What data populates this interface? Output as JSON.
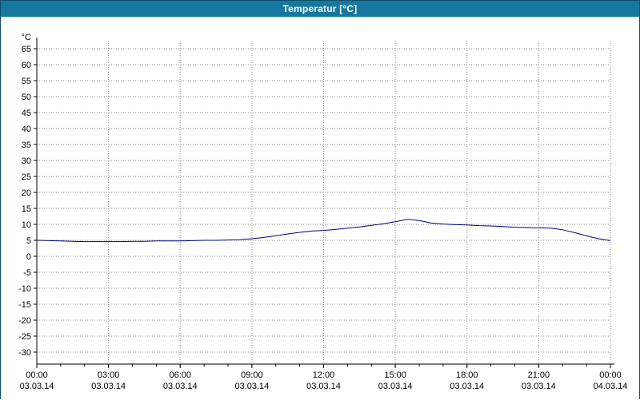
{
  "title": "Temperatur [°C]",
  "colors": {
    "titlebar_bg": "#16789f",
    "titlebar_text": "#ffffff",
    "window_border": "#0f4c6b",
    "grid": "#8a8a8a",
    "axis": "#000000",
    "series_line": "#000080",
    "plot_bg": "#ffffff"
  },
  "chart_data": {
    "type": "line",
    "title": "Temperatur [°C]",
    "xlabel": "",
    "ylabel": "°C",
    "ylim": [
      -30,
      65
    ],
    "ytick_step": 5,
    "xlim": [
      0,
      24
    ],
    "grid": true,
    "legend_position": "none",
    "xticks": [
      {
        "hour": 0,
        "time": "00:00",
        "date": "03.03.14"
      },
      {
        "hour": 3,
        "time": "03:00",
        "date": "03.03.14"
      },
      {
        "hour": 6,
        "time": "06:00",
        "date": "03.03.14"
      },
      {
        "hour": 9,
        "time": "09:00",
        "date": "03.03.14"
      },
      {
        "hour": 12,
        "time": "12:00",
        "date": "03.03.14"
      },
      {
        "hour": 15,
        "time": "15:00",
        "date": "03.03.14"
      },
      {
        "hour": 18,
        "time": "18:00",
        "date": "03.03.14"
      },
      {
        "hour": 21,
        "time": "21:00",
        "date": "03.03.14"
      },
      {
        "hour": 24,
        "time": "00:00",
        "date": "04.03.14"
      }
    ],
    "series": [
      {
        "name": "Temperatur",
        "color": "#000080",
        "points": [
          [
            0,
            5.0
          ],
          [
            0.5,
            4.9
          ],
          [
            1,
            4.8
          ],
          [
            1.5,
            4.7
          ],
          [
            2,
            4.6
          ],
          [
            2.5,
            4.6
          ],
          [
            3,
            4.6
          ],
          [
            3.5,
            4.6
          ],
          [
            4,
            4.7
          ],
          [
            4.5,
            4.7
          ],
          [
            5,
            4.8
          ],
          [
            5.5,
            4.8
          ],
          [
            6,
            4.8
          ],
          [
            6.5,
            4.9
          ],
          [
            7,
            5.0
          ],
          [
            7.5,
            5.0
          ],
          [
            8,
            5.1
          ],
          [
            8.5,
            5.2
          ],
          [
            9,
            5.5
          ],
          [
            9.5,
            5.9
          ],
          [
            10,
            6.4
          ],
          [
            10.5,
            7.0
          ],
          [
            11,
            7.5
          ],
          [
            11.5,
            7.9
          ],
          [
            12,
            8.1
          ],
          [
            12.5,
            8.4
          ],
          [
            13,
            8.8
          ],
          [
            13.5,
            9.2
          ],
          [
            14,
            9.7
          ],
          [
            14.5,
            10.2
          ],
          [
            15,
            10.8
          ],
          [
            15.25,
            11.2
          ],
          [
            15.5,
            11.6
          ],
          [
            15.75,
            11.4
          ],
          [
            16,
            11.2
          ],
          [
            16.25,
            10.8
          ],
          [
            16.5,
            10.4
          ],
          [
            17,
            10.1
          ],
          [
            17.5,
            9.9
          ],
          [
            18,
            9.8
          ],
          [
            18.5,
            9.6
          ],
          [
            19,
            9.5
          ],
          [
            19.5,
            9.3
          ],
          [
            20,
            9.1
          ],
          [
            20.5,
            9.0
          ],
          [
            21,
            8.9
          ],
          [
            21.5,
            8.8
          ],
          [
            22,
            8.3
          ],
          [
            22.5,
            7.4
          ],
          [
            23,
            6.4
          ],
          [
            23.5,
            5.5
          ],
          [
            24,
            4.9
          ]
        ]
      }
    ]
  }
}
